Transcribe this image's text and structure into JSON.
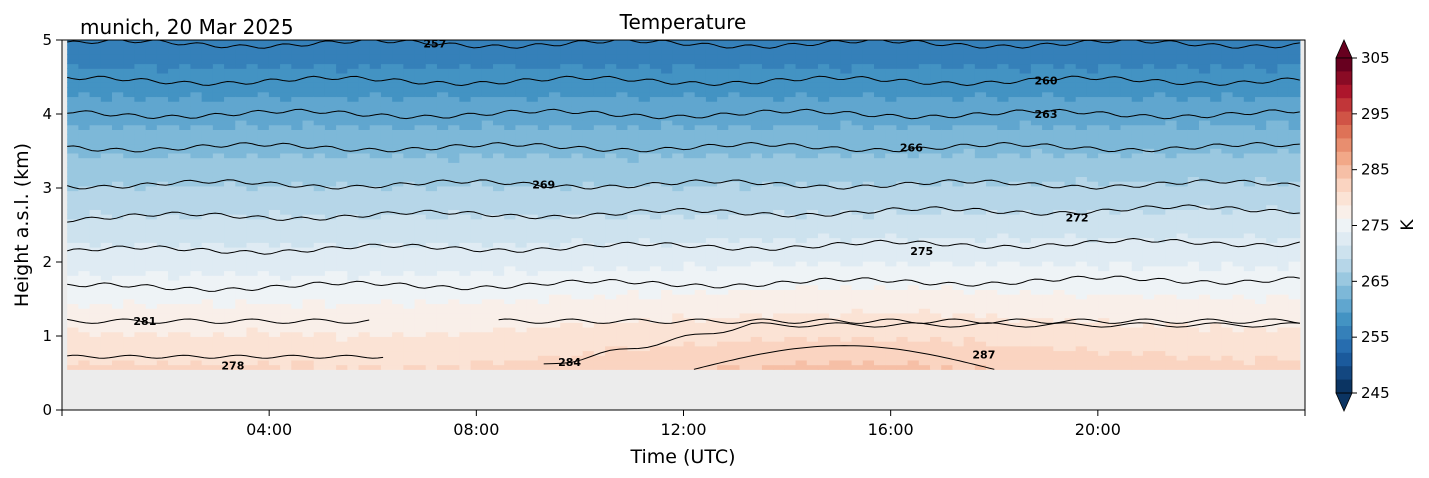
{
  "chart_data": {
    "type": "contour",
    "title": "Temperature",
    "subtitle": "munich, 20 Mar 2025",
    "xlabel": "Time (UTC)",
    "ylabel": "Height a.s.l. (km)",
    "xlim_hours": [
      0,
      24
    ],
    "ylim": [
      0,
      5
    ],
    "x_ticks": [
      {
        "hour": 4,
        "label": "04:00"
      },
      {
        "hour": 8,
        "label": "08:00"
      },
      {
        "hour": 12,
        "label": "12:00"
      },
      {
        "hour": 16,
        "label": "16:00"
      },
      {
        "hour": 20,
        "label": "20:00"
      }
    ],
    "y_ticks": [
      {
        "value": 0,
        "label": "0"
      },
      {
        "value": 1,
        "label": "1"
      },
      {
        "value": 2,
        "label": "2"
      },
      {
        "value": 3,
        "label": "3"
      },
      {
        "value": 4,
        "label": "4"
      },
      {
        "value": 5,
        "label": "5"
      }
    ],
    "data_start_hour": 0.1,
    "data_end_hour": 23.9,
    "no_data_below_km": 0.55,
    "contour_lines": [
      {
        "label": "257",
        "height_km": 4.95,
        "label_hour": 7.2
      },
      {
        "label": "260",
        "height_km": 4.45,
        "label_hour": 19.0
      },
      {
        "label": "263",
        "height_km": 4.0,
        "label_hour": 19.0
      },
      {
        "label": "266",
        "height_km": 3.55,
        "label_hour": 16.4
      },
      {
        "label": "269",
        "height_km": 3.05,
        "label_hour": 9.3
      },
      {
        "label": "272",
        "height_km": 2.6,
        "label_hour": 19.6
      },
      {
        "label": "275",
        "height_km": 2.15,
        "label_hour": 16.6
      },
      {
        "label": "",
        "height_km": 1.65,
        "label_hour": null
      },
      {
        "label": "281",
        "height_km": 1.2,
        "label_hour": 1.6
      },
      {
        "label": "278",
        "height_km": 0.6,
        "label_hour": 3.3
      },
      {
        "label": "284",
        "height_km": 0.65,
        "label_hour": 9.8
      },
      {
        "label": "287",
        "height_km": 0.75,
        "label_hour": 17.8
      }
    ],
    "colorbar": {
      "label": "K",
      "min": 245,
      "max": 305,
      "ticks": [
        "305",
        "295",
        "285",
        "275",
        "265",
        "255",
        "245"
      ],
      "colors_high_to_low": [
        "#67001f",
        "#8a0b25",
        "#ad162c",
        "#c13639",
        "#d05446",
        "#de7257",
        "#e88e6f",
        "#f2a888",
        "#f6bfa6",
        "#fad4c1",
        "#fbe3d5",
        "#f9efe9",
        "#eef3f6",
        "#dfebf3",
        "#cde2ee",
        "#b6d6e8",
        "#9ac8e0",
        "#7db8d8",
        "#60a6cf",
        "#4393c3",
        "#3580b9",
        "#276daf",
        "#1b5a9c",
        "#134780",
        "#0b3462"
      ]
    },
    "colors": {
      "no_data": "#ececec",
      "contour_line": "#000000"
    }
  }
}
